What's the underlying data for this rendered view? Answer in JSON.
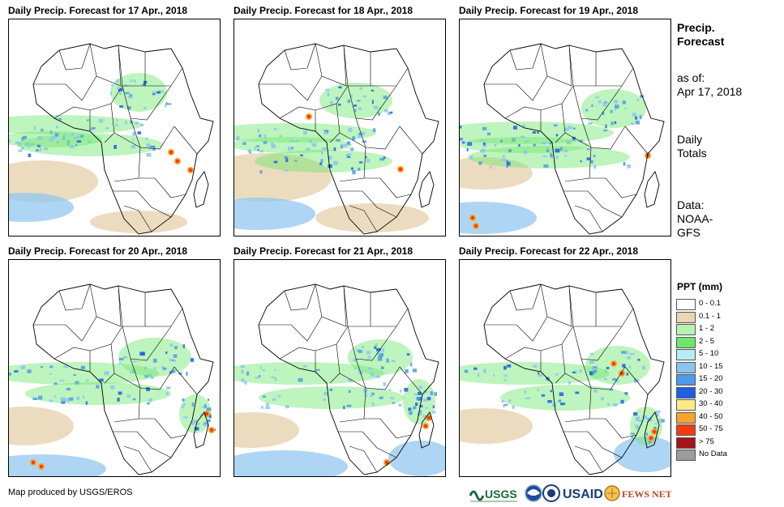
{
  "panels": [
    {
      "title": "Daily Precip. Forecast for 17 Apr., 2018"
    },
    {
      "title": "Daily Precip. Forecast for 18 Apr., 2018"
    },
    {
      "title": "Daily Precip. Forecast for 19 Apr., 2018"
    },
    {
      "title": "Daily Precip. Forecast for 20 Apr., 2018"
    },
    {
      "title": "Daily Precip. Forecast for 21 Apr., 2018"
    },
    {
      "title": "Daily Precip. Forecast for 22 Apr., 2018"
    }
  ],
  "sidebar": {
    "title_line1": "Precip.",
    "title_line2": "Forecast",
    "asof_label": "as of:",
    "asof_date": "Apr 17, 2018",
    "daily_line1": "Daily",
    "daily_line2": "Totals",
    "data_line1": "Data:",
    "data_line2": "NOAA-",
    "data_line3": "GFS"
  },
  "legend": {
    "title": "PPT (mm)",
    "items": [
      {
        "label": "0 - 0.1",
        "color": "#ffffff"
      },
      {
        "label": "0.1 - 1",
        "color": "#e9d6b4"
      },
      {
        "label": "1 - 2",
        "color": "#b9f3b4"
      },
      {
        "label": "2 - 5",
        "color": "#6ee66c"
      },
      {
        "label": "5 - 10",
        "color": "#b4eef5"
      },
      {
        "label": "10 - 15",
        "color": "#8cc4f0"
      },
      {
        "label": "15 - 20",
        "color": "#4f99ea"
      },
      {
        "label": "20 - 30",
        "color": "#1f5fe0"
      },
      {
        "label": "30 - 40",
        "color": "#fde98a"
      },
      {
        "label": "40 - 50",
        "color": "#f6a42b"
      },
      {
        "label": "50 - 75",
        "color": "#f33b12"
      },
      {
        "label": "> 75",
        "color": "#a5141a"
      },
      {
        "label": "No Data",
        "color": "#9c9c9c"
      }
    ]
  },
  "footer": {
    "credit": "Map produced by USGS/EROS",
    "usgs": "USGS",
    "usaid": "USAID",
    "fewsnet": "FEWS NET"
  }
}
